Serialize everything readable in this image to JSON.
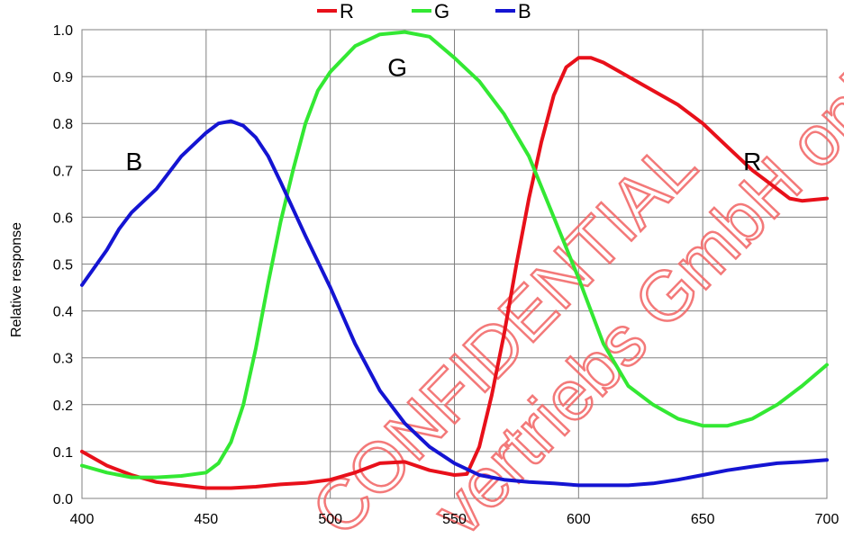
{
  "chart_data": {
    "type": "line",
    "title": "",
    "xlabel": "",
    "ylabel": "Relative response",
    "xlim": [
      400,
      700
    ],
    "ylim": [
      0.0,
      1.0
    ],
    "grid": true,
    "legend_position": "top-center",
    "x_ticks": [
      "400",
      "450",
      "500",
      "550",
      "600",
      "650",
      "700"
    ],
    "y_ticks": [
      "0.0",
      "0.1",
      "0.2",
      "0.3",
      "0.4",
      "0.5",
      "0.6",
      "0.7",
      "0.8",
      "0.9",
      "1.0"
    ],
    "series": [
      {
        "name": "R",
        "color": "#e8101a",
        "points": [
          [
            400,
            0.1
          ],
          [
            410,
            0.07
          ],
          [
            420,
            0.05
          ],
          [
            430,
            0.035
          ],
          [
            440,
            0.028
          ],
          [
            450,
            0.022
          ],
          [
            460,
            0.022
          ],
          [
            470,
            0.025
          ],
          [
            480,
            0.03
          ],
          [
            490,
            0.033
          ],
          [
            500,
            0.04
          ],
          [
            510,
            0.055
          ],
          [
            520,
            0.075
          ],
          [
            530,
            0.078
          ],
          [
            540,
            0.06
          ],
          [
            550,
            0.05
          ],
          [
            555,
            0.052
          ],
          [
            560,
            0.11
          ],
          [
            565,
            0.22
          ],
          [
            570,
            0.35
          ],
          [
            575,
            0.5
          ],
          [
            580,
            0.64
          ],
          [
            585,
            0.76
          ],
          [
            590,
            0.86
          ],
          [
            595,
            0.92
          ],
          [
            600,
            0.94
          ],
          [
            605,
            0.94
          ],
          [
            610,
            0.93
          ],
          [
            620,
            0.9
          ],
          [
            630,
            0.87
          ],
          [
            640,
            0.84
          ],
          [
            650,
            0.8
          ],
          [
            660,
            0.75
          ],
          [
            670,
            0.7
          ],
          [
            680,
            0.66
          ],
          [
            685,
            0.64
          ],
          [
            690,
            0.635
          ],
          [
            700,
            0.64
          ]
        ]
      },
      {
        "name": "G",
        "color": "#33e833",
        "points": [
          [
            400,
            0.07
          ],
          [
            410,
            0.055
          ],
          [
            420,
            0.045
          ],
          [
            430,
            0.045
          ],
          [
            440,
            0.048
          ],
          [
            450,
            0.055
          ],
          [
            455,
            0.075
          ],
          [
            460,
            0.12
          ],
          [
            465,
            0.2
          ],
          [
            470,
            0.32
          ],
          [
            475,
            0.46
          ],
          [
            480,
            0.59
          ],
          [
            485,
            0.7
          ],
          [
            490,
            0.8
          ],
          [
            495,
            0.87
          ],
          [
            500,
            0.91
          ],
          [
            510,
            0.965
          ],
          [
            520,
            0.99
          ],
          [
            530,
            0.995
          ],
          [
            540,
            0.985
          ],
          [
            550,
            0.94
          ],
          [
            560,
            0.89
          ],
          [
            570,
            0.82
          ],
          [
            580,
            0.73
          ],
          [
            590,
            0.6
          ],
          [
            600,
            0.47
          ],
          [
            610,
            0.33
          ],
          [
            620,
            0.24
          ],
          [
            630,
            0.2
          ],
          [
            640,
            0.17
          ],
          [
            650,
            0.155
          ],
          [
            660,
            0.155
          ],
          [
            670,
            0.17
          ],
          [
            680,
            0.2
          ],
          [
            690,
            0.24
          ],
          [
            700,
            0.285
          ]
        ]
      },
      {
        "name": "B",
        "color": "#1414d2",
        "points": [
          [
            400,
            0.455
          ],
          [
            410,
            0.53
          ],
          [
            415,
            0.575
          ],
          [
            420,
            0.61
          ],
          [
            430,
            0.66
          ],
          [
            440,
            0.73
          ],
          [
            450,
            0.78
          ],
          [
            455,
            0.8
          ],
          [
            460,
            0.805
          ],
          [
            465,
            0.795
          ],
          [
            470,
            0.77
          ],
          [
            475,
            0.73
          ],
          [
            480,
            0.675
          ],
          [
            490,
            0.56
          ],
          [
            500,
            0.45
          ],
          [
            510,
            0.33
          ],
          [
            520,
            0.23
          ],
          [
            530,
            0.16
          ],
          [
            540,
            0.11
          ],
          [
            550,
            0.075
          ],
          [
            560,
            0.05
          ],
          [
            570,
            0.04
          ],
          [
            580,
            0.035
          ],
          [
            590,
            0.032
          ],
          [
            600,
            0.028
          ],
          [
            610,
            0.028
          ],
          [
            620,
            0.028
          ],
          [
            630,
            0.032
          ],
          [
            640,
            0.04
          ],
          [
            650,
            0.05
          ],
          [
            660,
            0.06
          ],
          [
            670,
            0.068
          ],
          [
            680,
            0.075
          ],
          [
            690,
            0.078
          ],
          [
            700,
            0.082
          ]
        ]
      }
    ],
    "curve_labels": [
      {
        "text": "B",
        "x": 421,
        "y": 0.72
      },
      {
        "text": "G",
        "x": 527,
        "y": 0.92
      },
      {
        "text": "R",
        "x": 670,
        "y": 0.72
      }
    ],
    "watermark": "CONFIDENTIAL vertriebs GmbH only"
  }
}
